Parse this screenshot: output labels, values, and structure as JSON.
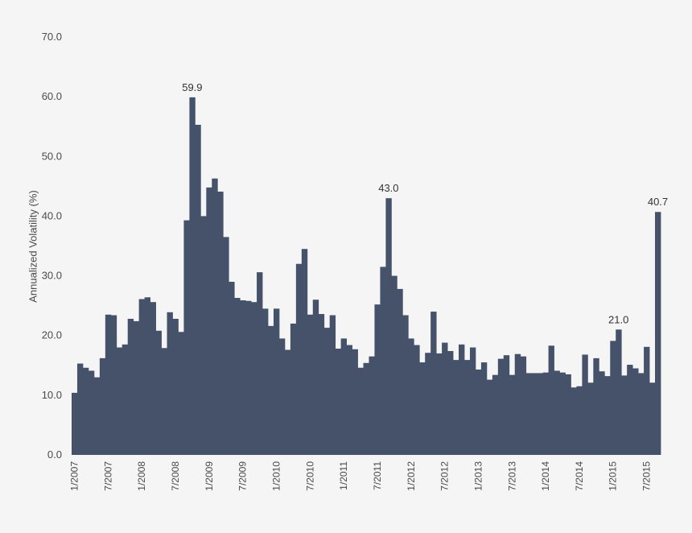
{
  "chart_data": {
    "type": "bar",
    "title": "",
    "xlabel": "",
    "ylabel": "Annualized Volatility (%)",
    "ylim": [
      0,
      70
    ],
    "yticks": [
      "0.0",
      "10.0",
      "20.0",
      "30.0",
      "40.0",
      "50.0",
      "60.0",
      "70.0"
    ],
    "xticks": [
      "1/2007",
      "7/2007",
      "1/2008",
      "7/2008",
      "1/2009",
      "7/2009",
      "1/2010",
      "7/2010",
      "1/2011",
      "7/2011",
      "1/2012",
      "7/2012",
      "1/2013",
      "7/2013",
      "1/2014",
      "7/2014",
      "1/2015",
      "7/2015"
    ],
    "start_label": "1/2007",
    "frequency": "monthly",
    "color": "#45526a",
    "values": [
      10.4,
      15.3,
      14.6,
      14.1,
      13.0,
      16.2,
      23.5,
      23.4,
      18.0,
      18.5,
      22.8,
      22.4,
      26.1,
      26.4,
      25.6,
      20.8,
      17.9,
      23.9,
      22.8,
      20.6,
      39.3,
      59.9,
      55.3,
      40.0,
      44.8,
      46.3,
      44.1,
      36.5,
      29.0,
      26.3,
      25.9,
      25.8,
      25.6,
      30.6,
      24.5,
      21.6,
      24.5,
      19.5,
      17.6,
      22.0,
      32.0,
      34.5,
      23.5,
      26.0,
      23.6,
      21.3,
      23.4,
      17.8,
      19.5,
      18.4,
      17.7,
      14.6,
      15.4,
      16.5,
      25.2,
      31.5,
      43.0,
      30.0,
      27.8,
      23.4,
      19.5,
      18.4,
      15.5,
      17.1,
      24.0,
      17.0,
      18.8,
      17.4,
      15.9,
      18.5,
      15.9,
      18.0,
      14.3,
      15.5,
      12.6,
      13.4,
      16.1,
      16.7,
      13.4,
      16.9,
      16.5,
      13.7,
      13.7,
      13.7,
      13.8,
      18.3,
      14.1,
      13.8,
      13.5,
      11.3,
      11.5,
      16.8,
      12.1,
      16.2,
      14.0,
      13.2,
      19.1,
      21.0,
      13.3,
      15.1,
      14.5,
      13.7,
      18.1,
      12.1,
      40.7
    ],
    "annotations": [
      {
        "index": 21,
        "text": "59.9"
      },
      {
        "index": 56,
        "text": "43.0"
      },
      {
        "index": 97,
        "text": "21.0"
      },
      {
        "index": 104,
        "text": "40.7"
      }
    ]
  }
}
